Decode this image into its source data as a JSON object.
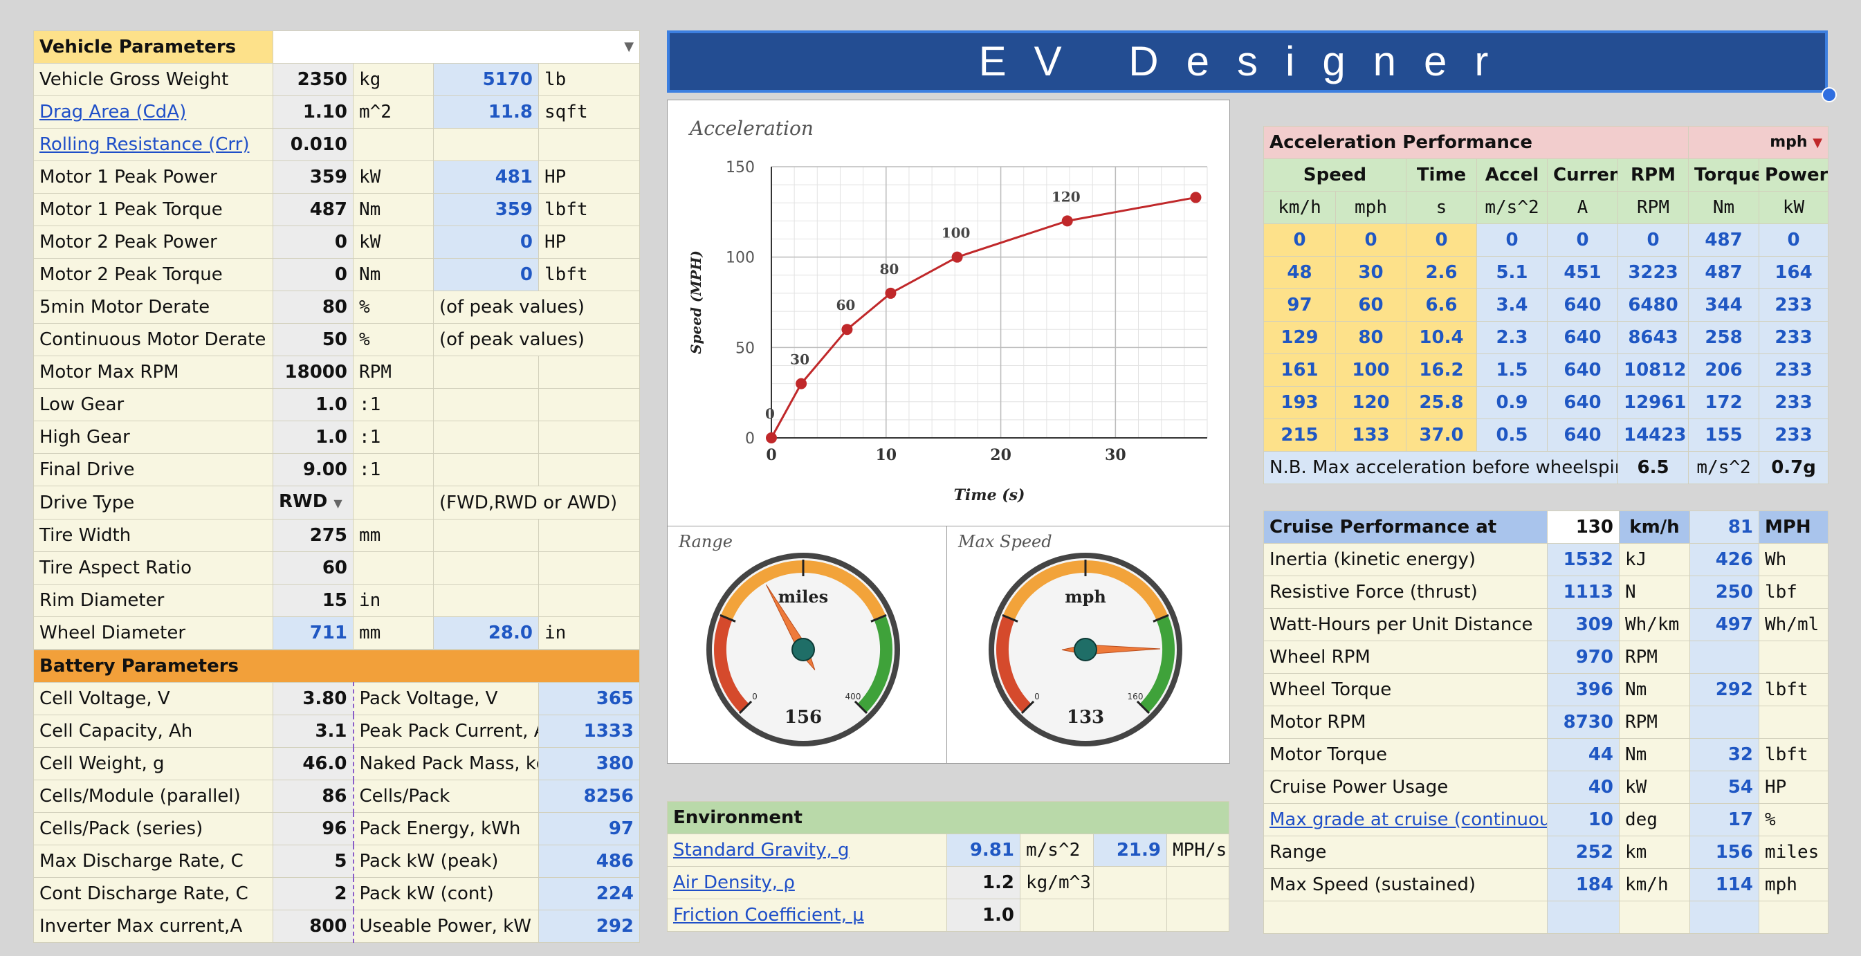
{
  "title": "EV Designer",
  "vehicle": {
    "header": "Vehicle Parameters",
    "rows": [
      {
        "label": "Vehicle Gross Weight",
        "value": "2350",
        "unit": "kg",
        "v2": "5170",
        "u2": "lb",
        "link": false
      },
      {
        "label": "Drag Area (CdA)",
        "value": "1.10",
        "unit": "m^2",
        "v2": "11.8",
        "u2": "sqft",
        "link": true
      },
      {
        "label": "Rolling Resistance (Crr)",
        "value": "0.010",
        "unit": "",
        "v2": "",
        "u2": "",
        "link": true
      },
      {
        "label": "Motor 1 Peak Power",
        "value": "359",
        "unit": "kW",
        "v2": "481",
        "u2": "HP",
        "link": false
      },
      {
        "label": "Motor 1 Peak Torque",
        "value": "487",
        "unit": "Nm",
        "v2": "359",
        "u2": "lbft",
        "link": false
      },
      {
        "label": "Motor 2 Peak Power",
        "value": "0",
        "unit": "kW",
        "v2": "0",
        "u2": "HP",
        "link": false
      },
      {
        "label": "Motor 2 Peak Torque",
        "value": "0",
        "unit": "Nm",
        "v2": "0",
        "u2": "lbft",
        "link": false
      },
      {
        "label": "5min Motor Derate",
        "value": "80",
        "unit": "%",
        "note": "(of peak values)",
        "link": false
      },
      {
        "label": "Continuous Motor Derate",
        "value": "50",
        "unit": "%",
        "note": "(of peak values)",
        "link": false
      },
      {
        "label": "Motor Max RPM",
        "value": "18000",
        "unit": "RPM",
        "v2": "",
        "u2": "",
        "link": false
      },
      {
        "label": "Low Gear",
        "value": "1.0",
        "unit": ":1",
        "v2": "",
        "u2": "",
        "link": false
      },
      {
        "label": "High Gear",
        "value": "1.0",
        "unit": ":1",
        "v2": "",
        "u2": "",
        "link": false
      },
      {
        "label": "Final Drive",
        "value": "9.00",
        "unit": ":1",
        "v2": "",
        "u2": "",
        "link": false
      }
    ],
    "drive": {
      "label": "Drive Type",
      "value": "RWD",
      "note": "(FWD,RWD or AWD)"
    },
    "rows2": [
      {
        "label": "Tire Width",
        "value": "275",
        "unit": "mm"
      },
      {
        "label": "Tire Aspect Ratio",
        "value": "60",
        "unit": ""
      },
      {
        "label": "Rim Diameter",
        "value": "15",
        "unit": "in"
      }
    ],
    "wheel": {
      "label": "Wheel Diameter",
      "value": "711",
      "unit": "mm",
      "v2": "28.0",
      "u2": "in"
    }
  },
  "battery": {
    "header": "Battery Parameters",
    "rows": [
      {
        "label": "Cell Voltage, V",
        "value": "3.80",
        "label2": "Pack Voltage, V",
        "value2": "365"
      },
      {
        "label": "Cell Capacity, Ah",
        "value": "3.1",
        "label2": "Peak Pack Current, A",
        "value2": "1333"
      },
      {
        "label": "Cell Weight, g",
        "value": "46.0",
        "label2": "Naked Pack Mass, kg",
        "value2": "380"
      },
      {
        "label": "Cells/Module (parallel)",
        "value": "86",
        "label2": "Cells/Pack",
        "value2": "8256"
      },
      {
        "label": "Cells/Pack (series)",
        "value": "96",
        "label2": "Pack Energy, kWh",
        "value2": "97"
      },
      {
        "label": "Max Discharge Rate, C",
        "value": "5",
        "label2": "Pack kW (peak)",
        "value2": "486"
      },
      {
        "label": "Cont Discharge Rate, C",
        "value": "2",
        "label2": "Pack kW (cont)",
        "value2": "224"
      },
      {
        "label": "Inverter Max current,A",
        "value": "800",
        "label2": "Useable Power, kW",
        "value2": "292"
      }
    ]
  },
  "chart_data": {
    "type": "line",
    "title": "Acceleration",
    "xlabel": "Time (s)",
    "ylabel": "Speed (MPH)",
    "x": [
      0,
      2.6,
      6.6,
      10.4,
      16.2,
      25.8,
      37.0
    ],
    "y": [
      0,
      30,
      60,
      80,
      100,
      120,
      133
    ],
    "point_labels": [
      "0",
      "30",
      "60",
      "80",
      "100",
      "120",
      ""
    ],
    "xlim": [
      0,
      38
    ],
    "ylim": [
      0,
      150
    ],
    "xticks": [
      0,
      10,
      20,
      30
    ],
    "yticks": [
      0,
      50,
      100,
      150
    ],
    "grid": true,
    "color": "#c0282a"
  },
  "gauges": {
    "range": {
      "title": "Range",
      "unit": "miles",
      "value": 156,
      "min_label": "0",
      "max_label": "400",
      "max": 400
    },
    "speed": {
      "title": "Max Speed",
      "unit": "mph",
      "value": 133,
      "min_label": "0",
      "max_label": "160",
      "max": 160
    }
  },
  "accel": {
    "header": "Acceleration Performance",
    "unit_select": "mph",
    "cols": [
      "Speed",
      "",
      "Time",
      "Accel",
      "Current",
      "RPM",
      "Torque",
      "Power"
    ],
    "units": [
      "km/h",
      "mph",
      "s",
      "m/s^2",
      "A",
      "RPM",
      "Nm",
      "kW"
    ],
    "rows": [
      [
        "0",
        "0",
        "0",
        "0",
        "0",
        "0",
        "487",
        "0"
      ],
      [
        "48",
        "30",
        "2.6",
        "5.1",
        "451",
        "3223",
        "487",
        "164"
      ],
      [
        "97",
        "60",
        "6.6",
        "3.4",
        "640",
        "6480",
        "344",
        "233"
      ],
      [
        "129",
        "80",
        "10.4",
        "2.3",
        "640",
        "8643",
        "258",
        "233"
      ],
      [
        "161",
        "100",
        "16.2",
        "1.5",
        "640",
        "10812",
        "206",
        "233"
      ],
      [
        "193",
        "120",
        "25.8",
        "0.9",
        "640",
        "12961",
        "172",
        "233"
      ],
      [
        "215",
        "133",
        "37.0",
        "0.5",
        "640",
        "14423",
        "155",
        "233"
      ]
    ],
    "note": "N.B. Max acceleration before wheelspin",
    "note_value": "6.5",
    "note_unit": "m/s^2",
    "note_g": "0.7g"
  },
  "cruise": {
    "header": "Cruise Performance at",
    "speed_kmh": "130",
    "kmh_label": "km/h",
    "speed_mph": "81",
    "mph_label": "MPH",
    "rows": [
      {
        "label": "Inertia (kinetic energy)",
        "v1": "1532",
        "u1": "kJ",
        "v2": "426",
        "u2": "Wh",
        "link": false
      },
      {
        "label": "Resistive Force (thrust)",
        "v1": "1113",
        "u1": "N",
        "v2": "250",
        "u2": "lbf",
        "link": false
      },
      {
        "label": "Watt-Hours per Unit Distance",
        "v1": "309",
        "u1": "Wh/km",
        "v2": "497",
        "u2": "Wh/ml",
        "link": false
      },
      {
        "label": "Wheel RPM",
        "v1": "970",
        "u1": "RPM",
        "v2": "",
        "u2": "",
        "link": false
      },
      {
        "label": "Wheel Torque",
        "v1": "396",
        "u1": "Nm",
        "v2": "292",
        "u2": "lbft",
        "link": false
      },
      {
        "label": "Motor RPM",
        "v1": "8730",
        "u1": "RPM",
        "v2": "",
        "u2": "",
        "link": false
      },
      {
        "label": "Motor Torque",
        "v1": "44",
        "u1": "Nm",
        "v2": "32",
        "u2": "lbft",
        "link": false
      },
      {
        "label": "Cruise Power Usage",
        "v1": "40",
        "u1": "kW",
        "v2": "54",
        "u2": "HP",
        "link": false
      },
      {
        "label": "Max grade at cruise (continuous)",
        "v1": "10",
        "u1": "deg",
        "v2": "17",
        "u2": "%",
        "link": true
      },
      {
        "label": "Range",
        "v1": "252",
        "u1": "km",
        "v2": "156",
        "u2": "miles",
        "link": false
      },
      {
        "label": "Max Speed (sustained)",
        "v1": "184",
        "u1": "km/h",
        "v2": "114",
        "u2": "mph",
        "link": false
      }
    ]
  },
  "environment": {
    "header": "Environment",
    "rows": [
      {
        "label": "Standard Gravity, g",
        "v1": "9.81",
        "u1": "m/s^2",
        "v2": "21.9",
        "u2": "MPH/s"
      },
      {
        "label": "Air Density, ρ",
        "v1": "1.2",
        "u1": "kg/m^3",
        "v2": "",
        "u2": ""
      },
      {
        "label": "Friction Coefficient, μ",
        "v1": "1.0",
        "u1": "",
        "v2": "",
        "u2": ""
      }
    ]
  }
}
